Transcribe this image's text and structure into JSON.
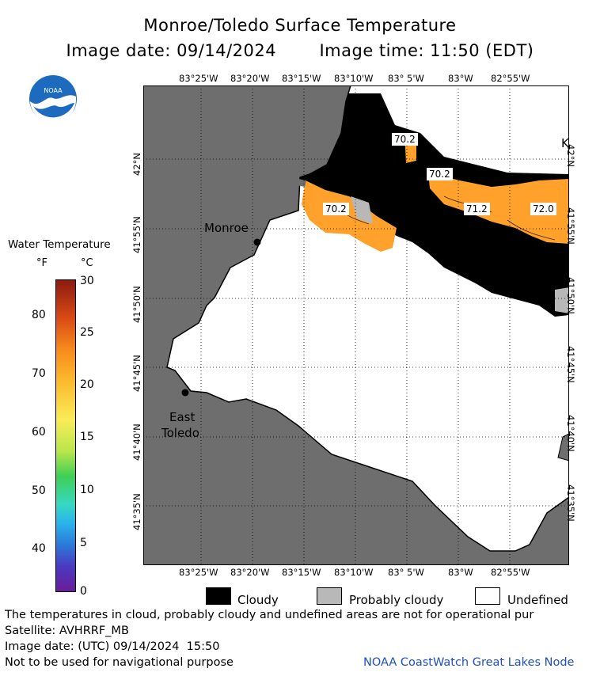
{
  "header": {
    "title": "Monroe/Toledo Surface Temperature",
    "image_date_label": "Image date: 09/14/2024",
    "image_time_label": "Image time: 11:50 (EDT)"
  },
  "logo": {
    "text": "NOAA"
  },
  "map": {
    "lon_labels": [
      "83°25'W",
      "83°20'W",
      "83°15'W",
      "83°10'W",
      "83° 5'W",
      "83°W",
      "82°55'W"
    ],
    "lat_labels": [
      "42°N",
      "41°55'N",
      "41°50'N",
      "41°45'N",
      "41°40'N",
      "41°35'N"
    ],
    "places": [
      {
        "name": "Monroe",
        "lines": [
          "Monroe"
        ]
      },
      {
        "name": "East Toledo",
        "lines": [
          "East",
          "Toledo"
        ]
      }
    ],
    "edge_letter": "K",
    "temperature_labels": [
      "70.2",
      "70.2",
      "70.2",
      "71.2",
      "72.0"
    ],
    "colors": {
      "land": "#6e6e6e",
      "cloudy": "#000000",
      "probably_cloudy": "#b8b8b8",
      "undefined": "#ffffff",
      "warm_water": "#ffa12a"
    }
  },
  "colorbar": {
    "title": "Water Temperature",
    "unit_f": "°F",
    "unit_c": "°C",
    "f_ticks": [
      "80",
      "70",
      "60",
      "50",
      "40"
    ],
    "c_ticks": [
      "30",
      "25",
      "20",
      "15",
      "10",
      "5",
      "0"
    ]
  },
  "legend": {
    "items": [
      {
        "label": "Cloudy",
        "color": "#000000"
      },
      {
        "label": "Probably cloudy",
        "color": "#b8b8b8"
      },
      {
        "label": "Undefined",
        "color": "#ffffff"
      }
    ]
  },
  "footer": {
    "note": "The temperatures in cloud, probably cloudy and undefined areas are not for operational pur",
    "satellite": "Satellite: AVHRRF_MB",
    "utc_date": "Image date: (UTC) 09/14/2024  15:50",
    "nav_warning": "Not to be used for navigational purpose",
    "credit": "NOAA CoastWatch Great Lakes Node"
  }
}
